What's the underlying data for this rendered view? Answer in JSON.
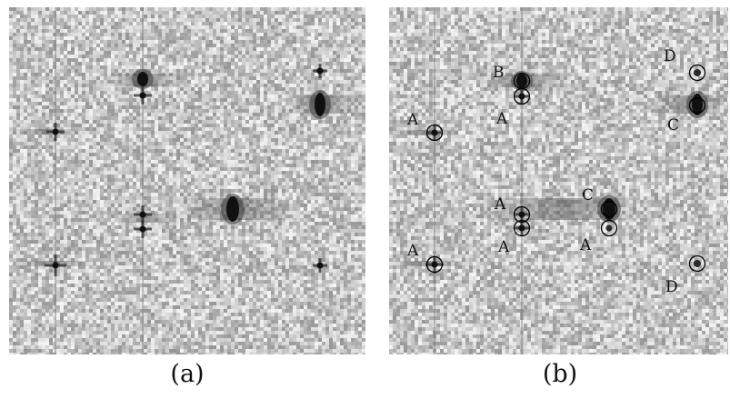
{
  "figure": {
    "panels": [
      {
        "id": "a",
        "caption": "(a)"
      },
      {
        "id": "b",
        "caption": "(b)"
      }
    ],
    "labels": [
      "A",
      "B",
      "C",
      "D"
    ],
    "colors": {
      "background_noise_base": "#b9b9b9",
      "spot_dark": "#101010",
      "circle": "#000000",
      "text": "#111111"
    }
  }
}
